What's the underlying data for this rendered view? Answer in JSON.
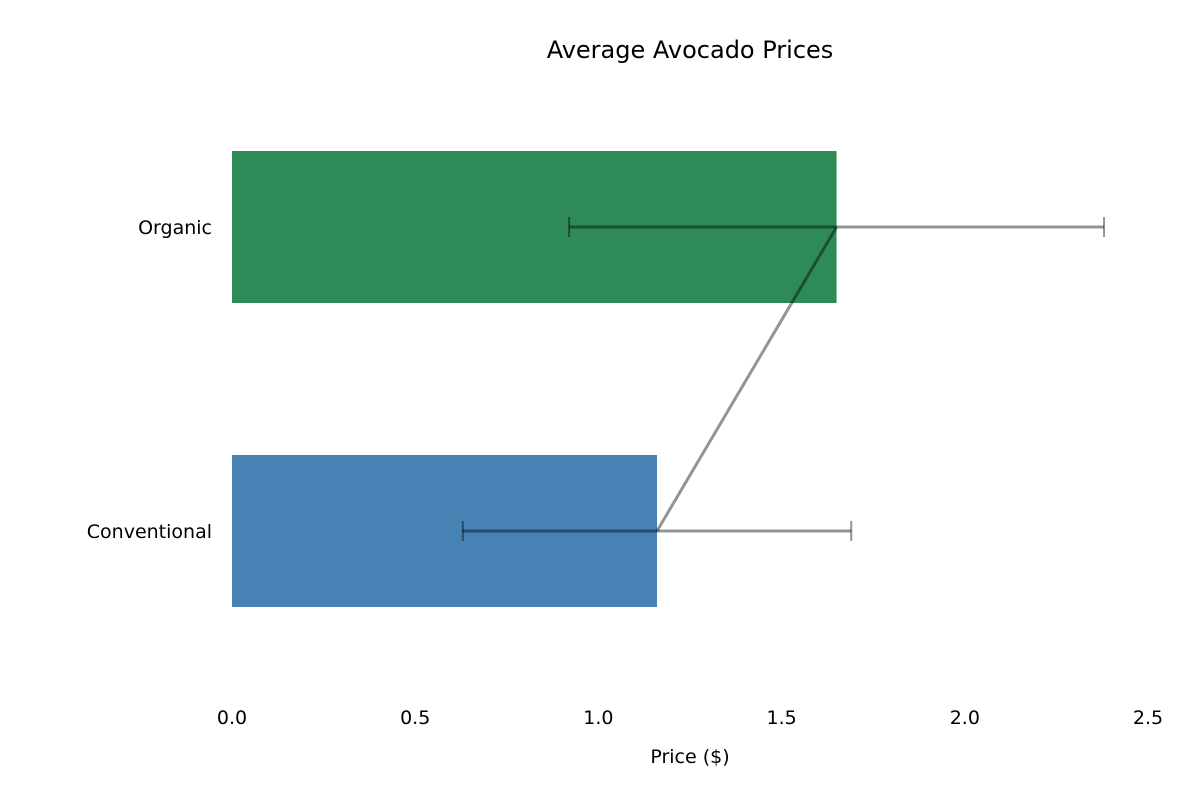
{
  "chart_data": {
    "type": "bar",
    "orientation": "horizontal",
    "title": "Average Avocado Prices",
    "xlabel": "Price ($)",
    "ylabel": "",
    "xlim": [
      0.0,
      2.5
    ],
    "xticks": [
      "0.0",
      "0.5",
      "1.0",
      "1.5",
      "2.0",
      "2.5"
    ],
    "categories": [
      "Organic",
      "Conventional"
    ],
    "values": [
      1.65,
      1.16
    ],
    "errors": [
      0.73,
      0.53
    ],
    "colors": [
      "#2e8b57",
      "#4682b4"
    ],
    "connecting_line": true,
    "grid": false,
    "legend": null
  }
}
